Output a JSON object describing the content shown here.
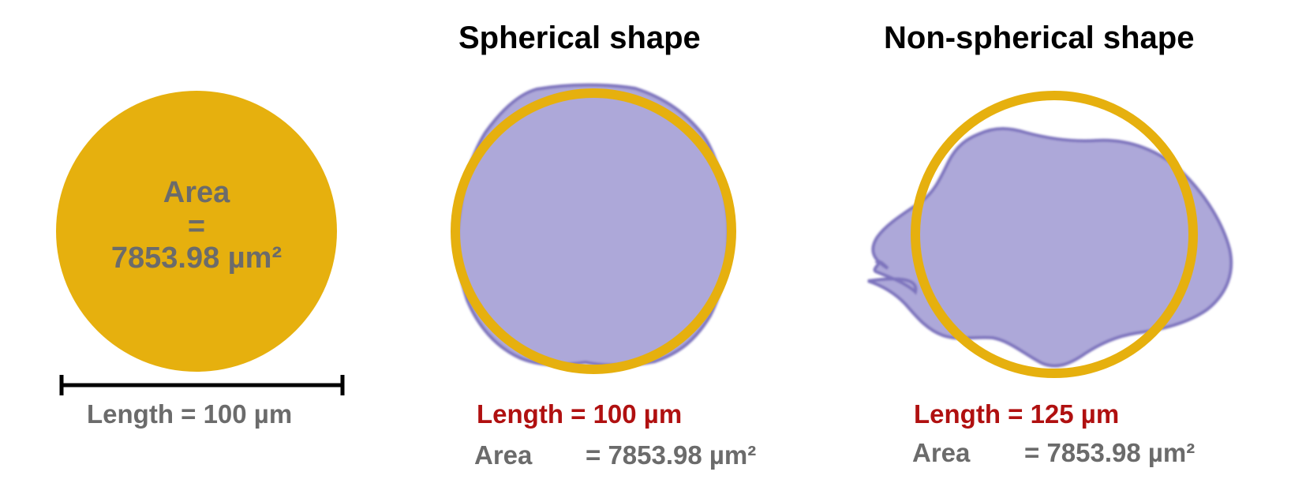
{
  "titles": {
    "spherical": "Spherical shape",
    "nonspherical": "Non-spherical shape"
  },
  "reference": {
    "area_word": "Area",
    "equals": "=",
    "area_value": "7853.98 µm²",
    "length_label": "Length = 100 µm"
  },
  "spherical": {
    "length_label": "Length = 100 µm",
    "area_word": "Area",
    "area_value": "= 7853.98 µm²"
  },
  "nonspherical": {
    "length_label": "Length = 125 µm",
    "area_word": "Area",
    "area_value": "= 7853.98 µm²"
  },
  "colors": {
    "gold": "#E6B00E",
    "particle_fill": "#ADA8D9",
    "particle_edge": "#7D73BD",
    "text_grey": "#6b6b6b",
    "text_red": "#B01010",
    "scale_bar": "#000000"
  }
}
